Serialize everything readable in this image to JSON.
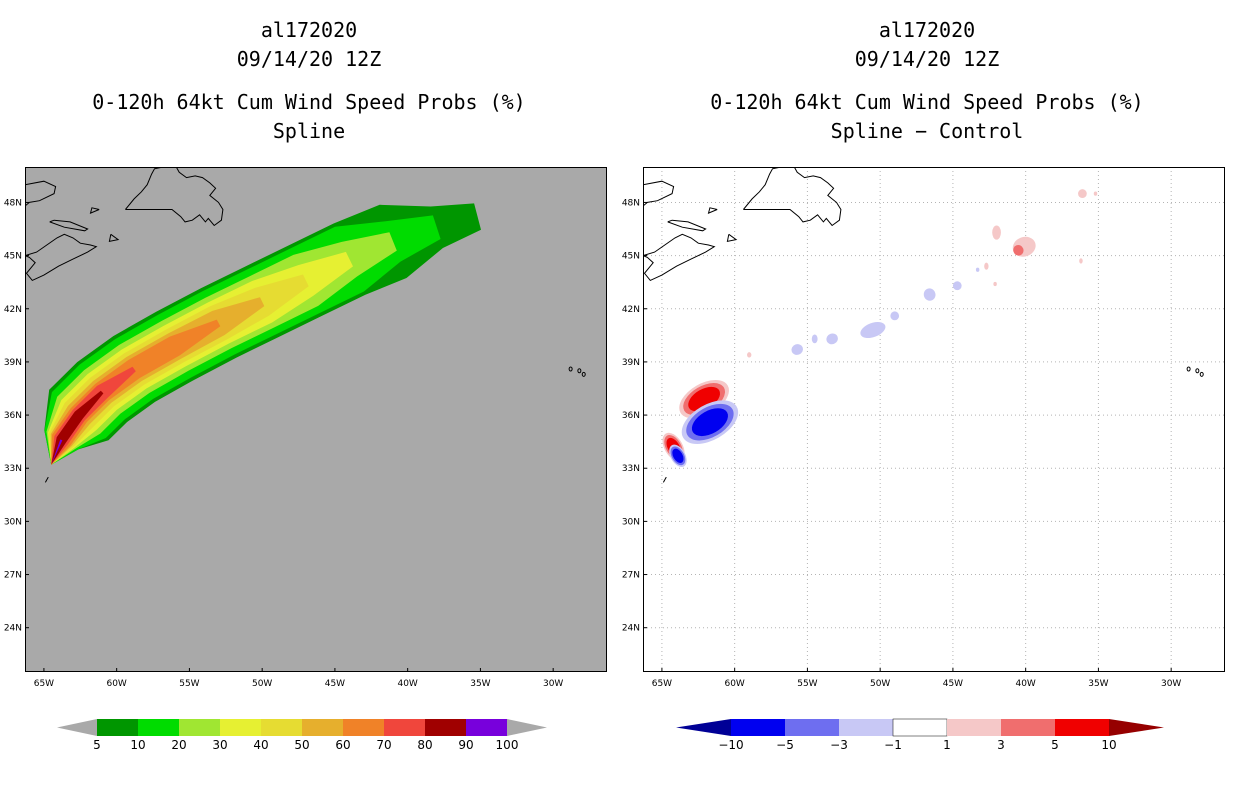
{
  "chart_data": [
    {
      "type": "contour-map",
      "storm_id": "al172020",
      "date": "09/14/20 12Z",
      "title": "0-120h 64kt Cum Wind Speed Probs (%)",
      "subtitle": "Spline",
      "lat_ticks": [
        "48N",
        "45N",
        "42N",
        "39N",
        "36N",
        "33N",
        "30N",
        "27N",
        "24N"
      ],
      "lat_values": [
        48,
        45,
        42,
        39,
        36,
        33,
        30,
        27,
        24
      ],
      "lon_ticks": [
        "65W",
        "60W",
        "55W",
        "50W",
        "45W",
        "40W",
        "35W",
        "30W"
      ],
      "lon_values": [
        65,
        60,
        55,
        50,
        45,
        40,
        35,
        30
      ],
      "xlim": [
        66.3,
        26.3
      ],
      "ylim": [
        21.5,
        50.0
      ],
      "grid": false,
      "background": "#a9a9a9",
      "colorbar": {
        "labels": [
          "5",
          "10",
          "20",
          "30",
          "40",
          "50",
          "60",
          "70",
          "80",
          "90",
          "100"
        ],
        "colors": [
          "#009600",
          "#00dc00",
          "#a0e632",
          "#e6f032",
          "#e6dc32",
          "#e6af2d",
          "#f08228",
          "#f0463c",
          "#a00000",
          "#7800dc"
        ]
      },
      "contour_levels": [
        5,
        10,
        20,
        30,
        40,
        50,
        60,
        70,
        80,
        90
      ],
      "track": [
        [
          64.5,
          33.2
        ],
        [
          63.8,
          34.6
        ],
        [
          62.6,
          36.0
        ],
        [
          61.0,
          37.3
        ],
        [
          58.8,
          38.6
        ],
        [
          56.0,
          39.9
        ],
        [
          53.0,
          41.2
        ],
        [
          50.0,
          42.4
        ],
        [
          47.0,
          43.6
        ],
        [
          44.0,
          44.8
        ],
        [
          41.0,
          45.8
        ],
        [
          38.0,
          46.6
        ],
        [
          35.2,
          47.2
        ]
      ],
      "halfwidths_deg": [
        0.0,
        0.35,
        0.55,
        0.8,
        1.05,
        1.3,
        1.6,
        2.0,
        2.2
      ]
    },
    {
      "type": "contour-map",
      "storm_id": "al172020",
      "date": "09/14/20 12Z",
      "title": "0-120h 64kt Cum Wind Speed Probs (%)",
      "subtitle": "Spline − Control",
      "lat_ticks": [
        "48N",
        "45N",
        "42N",
        "39N",
        "36N",
        "33N",
        "30N",
        "27N",
        "24N"
      ],
      "lat_values": [
        48,
        45,
        42,
        39,
        36,
        33,
        30,
        27,
        24
      ],
      "lon_ticks": [
        "65W",
        "60W",
        "55W",
        "50W",
        "45W",
        "40W",
        "35W",
        "30W"
      ],
      "lon_values": [
        65,
        60,
        55,
        50,
        45,
        40,
        35,
        30
      ],
      "xlim": [
        66.3,
        26.3
      ],
      "ylim": [
        21.5,
        50.0
      ],
      "grid": true,
      "background": "#ffffff",
      "colorbar": {
        "labels": [
          "−10",
          "−5",
          "−3",
          "−1",
          "1",
          "3",
          "5",
          "10"
        ],
        "colors": [
          "#000096",
          "#0000f0",
          "#6e6ef0",
          "#c8c8f5",
          "#ffffff",
          "#f5c8c8",
          "#f06e6e",
          "#f00000",
          "#960000"
        ]
      },
      "difference_features": [
        {
          "lon": 62.1,
          "lat": 36.9,
          "rx": 1.5,
          "ry": 0.7,
          "rot": -30,
          "value": 10
        },
        {
          "lon": 64.2,
          "lat": 34.2,
          "rx": 0.5,
          "ry": 0.7,
          "rot": -30,
          "value": 10
        },
        {
          "lon": 61.7,
          "lat": 35.6,
          "rx": 1.7,
          "ry": 0.8,
          "rot": -30,
          "value": -10
        },
        {
          "lon": 63.9,
          "lat": 33.7,
          "rx": 0.4,
          "ry": 0.55,
          "rot": -30,
          "value": -5
        },
        {
          "lon": 59.0,
          "lat": 39.4,
          "rx": 0.15,
          "ry": 0.15,
          "rot": 0,
          "value": 1
        },
        {
          "lon": 55.7,
          "lat": 39.7,
          "rx": 0.4,
          "ry": 0.3,
          "rot": -20,
          "value": -1
        },
        {
          "lon": 54.5,
          "lat": 40.3,
          "rx": 0.2,
          "ry": 0.25,
          "rot": 0,
          "value": -1
        },
        {
          "lon": 53.3,
          "lat": 40.3,
          "rx": 0.4,
          "ry": 0.3,
          "rot": -20,
          "value": -1
        },
        {
          "lon": 50.5,
          "lat": 40.8,
          "rx": 0.9,
          "ry": 0.4,
          "rot": -20,
          "value": -1
        },
        {
          "lon": 49.0,
          "lat": 41.6,
          "rx": 0.3,
          "ry": 0.25,
          "rot": 0,
          "value": -1
        },
        {
          "lon": 46.6,
          "lat": 42.8,
          "rx": 0.4,
          "ry": 0.35,
          "rot": -20,
          "value": -1
        },
        {
          "lon": 44.7,
          "lat": 43.3,
          "rx": 0.3,
          "ry": 0.25,
          "rot": 0,
          "value": -1
        },
        {
          "lon": 42.7,
          "lat": 44.4,
          "rx": 0.15,
          "ry": 0.2,
          "rot": 0,
          "value": 1
        },
        {
          "lon": 43.3,
          "lat": 44.2,
          "rx": 0.12,
          "ry": 0.12,
          "rot": 0,
          "value": -1
        },
        {
          "lon": 42.1,
          "lat": 43.4,
          "rx": 0.12,
          "ry": 0.12,
          "rot": 0,
          "value": 1
        },
        {
          "lon": 40.1,
          "lat": 45.5,
          "rx": 0.8,
          "ry": 0.55,
          "rot": -20,
          "value": 1
        },
        {
          "lon": 40.5,
          "lat": 45.3,
          "rx": 0.35,
          "ry": 0.3,
          "rot": -20,
          "value": 3
        },
        {
          "lon": 42.0,
          "lat": 46.3,
          "rx": 0.3,
          "ry": 0.4,
          "rot": 0,
          "value": 1
        },
        {
          "lon": 36.1,
          "lat": 48.5,
          "rx": 0.3,
          "ry": 0.25,
          "rot": 0,
          "value": 1
        },
        {
          "lon": 35.2,
          "lat": 48.5,
          "rx": 0.12,
          "ry": 0.12,
          "rot": 0,
          "value": 1
        },
        {
          "lon": 36.2,
          "lat": 44.7,
          "rx": 0.12,
          "ry": 0.15,
          "rot": 0,
          "value": 1
        }
      ]
    }
  ]
}
